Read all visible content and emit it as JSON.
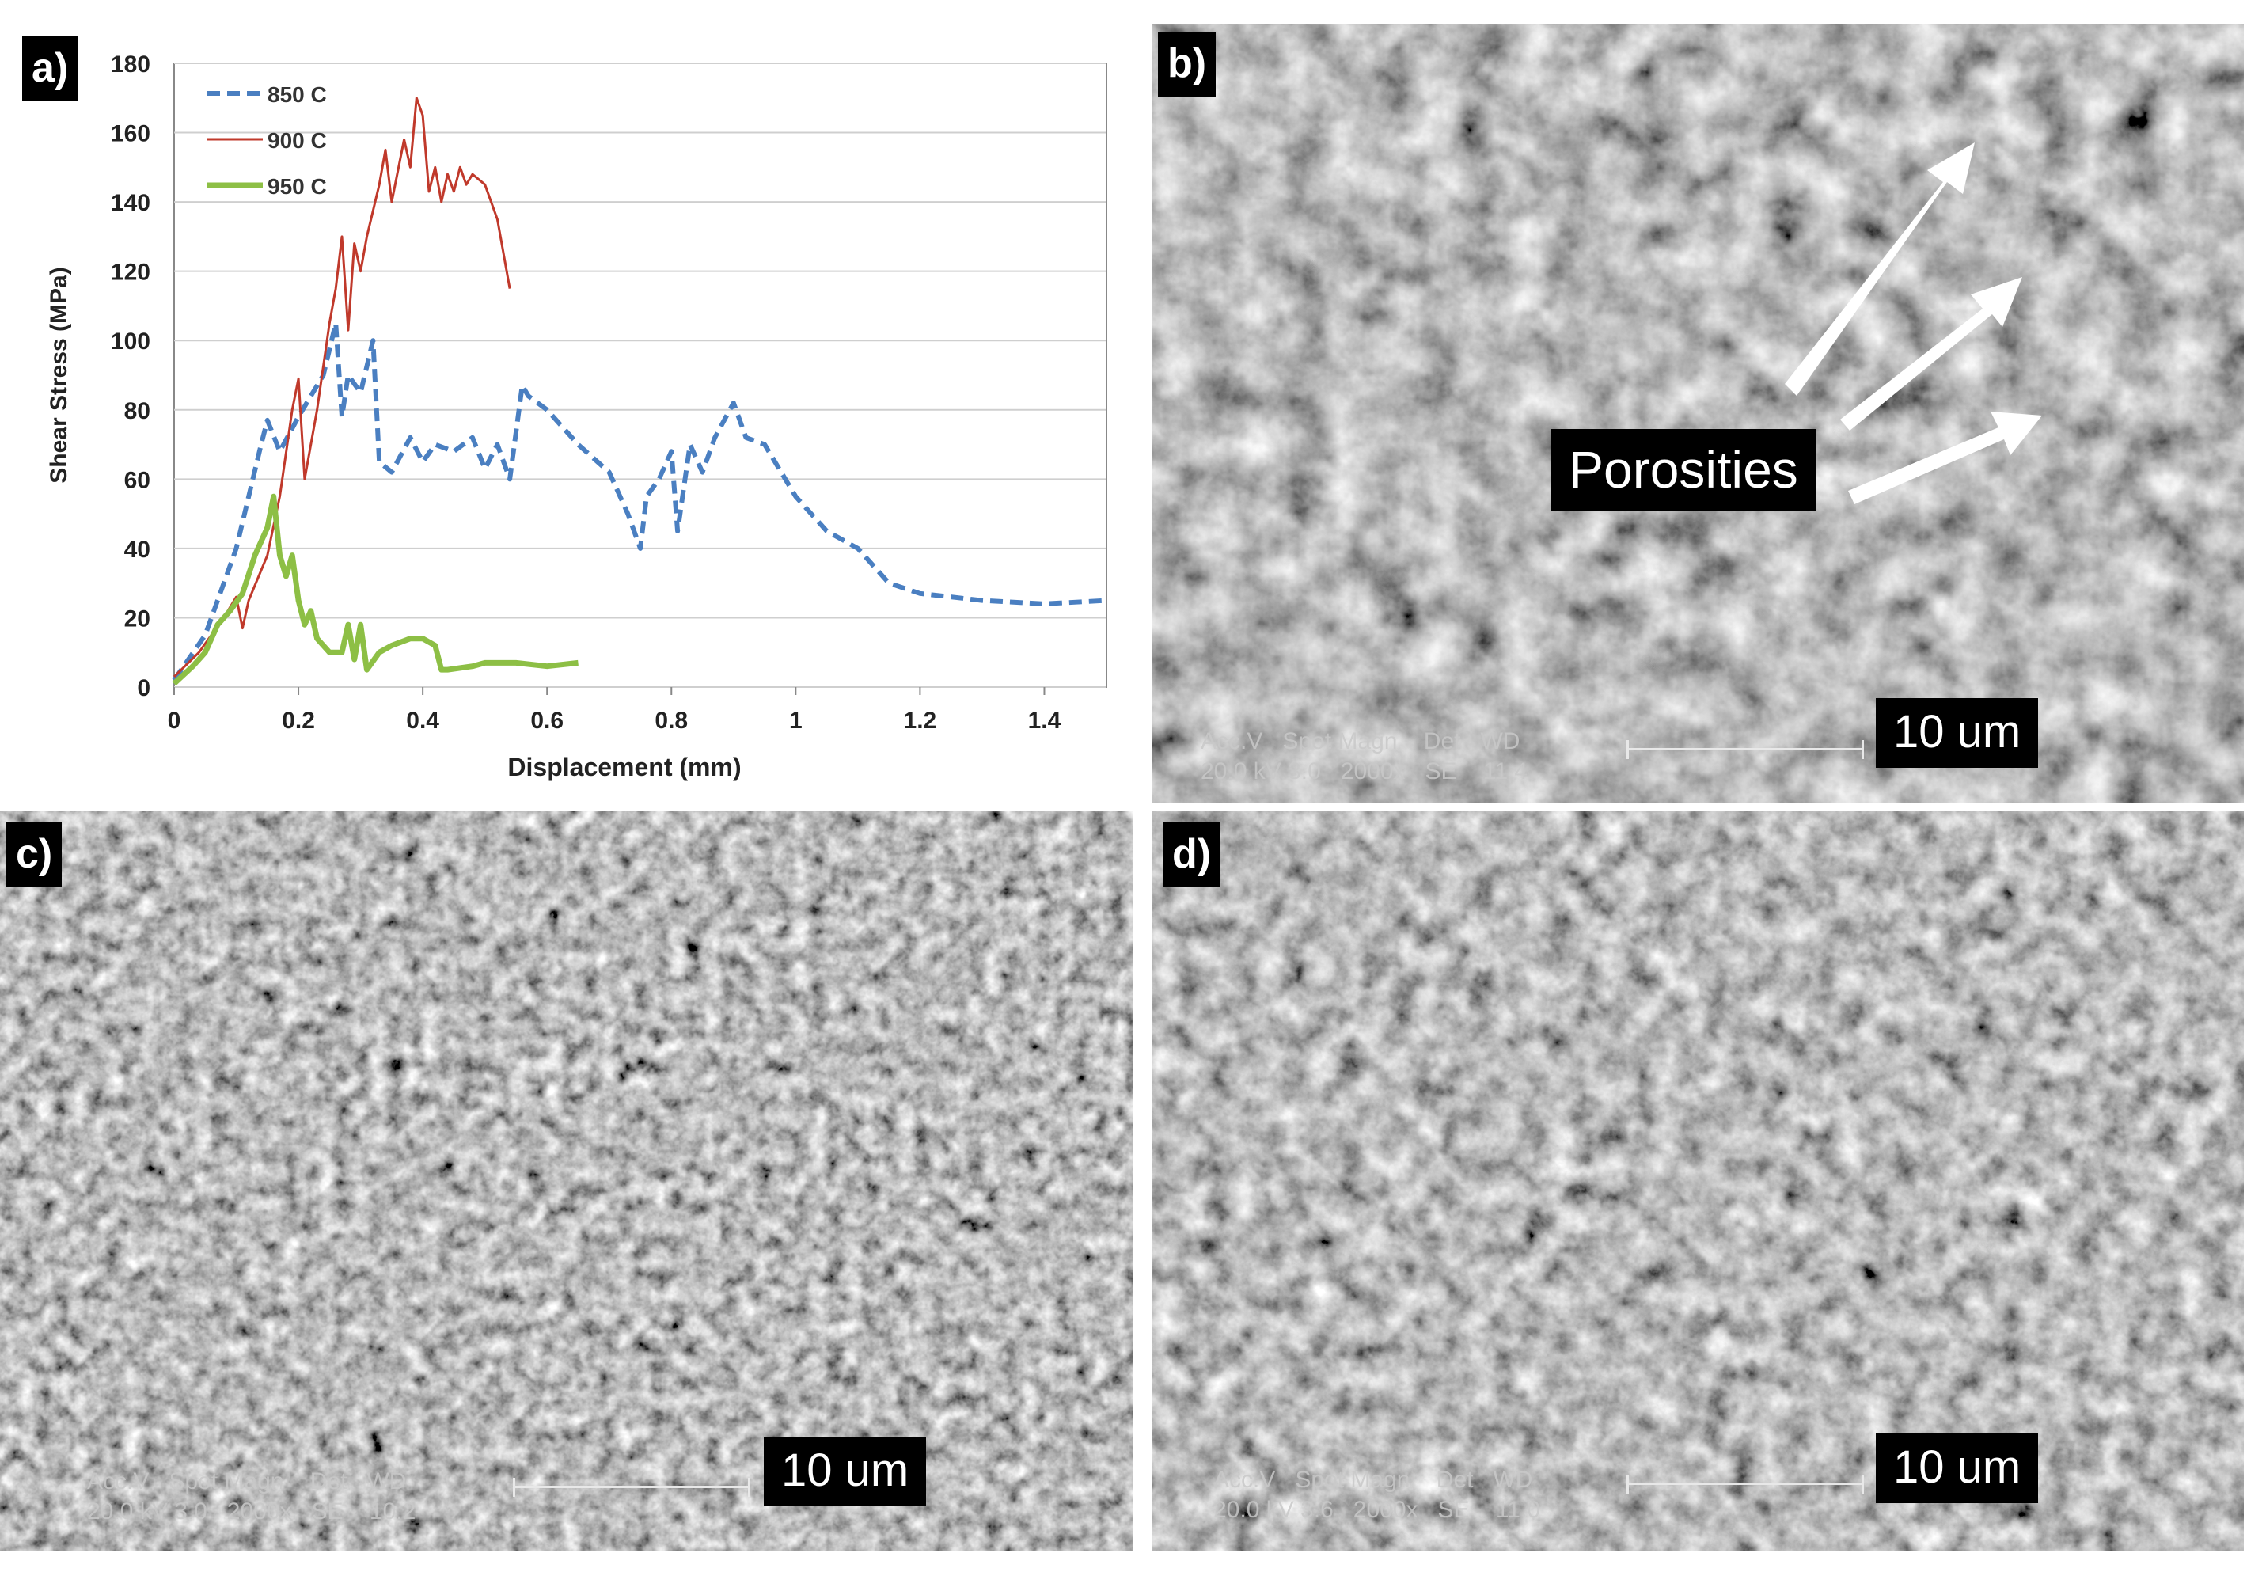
{
  "panels": {
    "a": {
      "label": "a)"
    },
    "b": {
      "label": "b)",
      "annotation": "Porosities",
      "scale": "10 um",
      "meta_line1": "Acc.V   Spot Magn    Det   WD",
      "meta_line2": "20.0 kV 3.0   2000x   SE    11.4"
    },
    "c": {
      "label": "c)",
      "scale": "10 um",
      "meta_line1": "Acc.V   Spot Magn    Det   WD",
      "meta_line2": "20.0 kV 3.0   2000x   SE    10.2"
    },
    "d": {
      "label": "d)",
      "scale": "10 um",
      "meta_line1": "Acc.V   Spot Magn    Det   WD",
      "meta_line2": "20.0 kV 3.6   2000x   SE    11.0"
    }
  },
  "colors": {
    "s850": "#4a7fc1",
    "s900": "#c0392b",
    "s950": "#8dbf45"
  },
  "chart_data": {
    "type": "line",
    "title": "",
    "xlabel": "Displacement (mm)",
    "ylabel": "Shear Stress (MPa)",
    "xlim": [
      0,
      1.5
    ],
    "ylim": [
      0,
      180
    ],
    "xticks": [
      0,
      0.2,
      0.4,
      0.6,
      0.8,
      1,
      1.2,
      1.4
    ],
    "xtick_labels": [
      "0",
      "0.2",
      "0.4",
      "0.6",
      "0.8",
      "1",
      "1.2",
      "1.4"
    ],
    "yticks": [
      0,
      20,
      40,
      60,
      80,
      100,
      120,
      140,
      160,
      180
    ],
    "ytick_labels": [
      "0",
      "20",
      "40",
      "60",
      "80",
      "100",
      "120",
      "140",
      "160",
      "180"
    ],
    "grid": "horizontal",
    "legend": "top-left",
    "series": [
      {
        "name": "850 C",
        "style": "dashed",
        "x": [
          0,
          0.05,
          0.1,
          0.14,
          0.15,
          0.17,
          0.2,
          0.24,
          0.26,
          0.27,
          0.28,
          0.3,
          0.32,
          0.33,
          0.35,
          0.38,
          0.4,
          0.42,
          0.45,
          0.48,
          0.5,
          0.52,
          0.54,
          0.56,
          0.57,
          0.6,
          0.65,
          0.7,
          0.73,
          0.75,
          0.76,
          0.78,
          0.8,
          0.81,
          0.83,
          0.85,
          0.87,
          0.9,
          0.92,
          0.95,
          1.0,
          1.05,
          1.1,
          1.15,
          1.2,
          1.3,
          1.4,
          1.5
        ],
        "y": [
          2,
          15,
          40,
          70,
          77,
          68,
          78,
          90,
          105,
          78,
          90,
          85,
          100,
          65,
          62,
          72,
          65,
          70,
          68,
          72,
          63,
          70,
          60,
          87,
          84,
          80,
          70,
          62,
          50,
          40,
          55,
          60,
          68,
          45,
          70,
          62,
          72,
          82,
          72,
          70,
          55,
          45,
          40,
          30,
          27,
          25,
          24,
          25
        ]
      },
      {
        "name": "900 C",
        "style": "solid",
        "x": [
          0,
          0.04,
          0.08,
          0.1,
          0.11,
          0.12,
          0.15,
          0.17,
          0.19,
          0.2,
          0.21,
          0.23,
          0.25,
          0.26,
          0.27,
          0.28,
          0.29,
          0.3,
          0.31,
          0.33,
          0.34,
          0.35,
          0.37,
          0.38,
          0.39,
          0.4,
          0.41,
          0.42,
          0.43,
          0.44,
          0.45,
          0.46,
          0.47,
          0.48,
          0.5,
          0.52,
          0.54
        ],
        "y": [
          3,
          10,
          20,
          26,
          17,
          25,
          38,
          55,
          80,
          89,
          60,
          80,
          105,
          115,
          130,
          103,
          128,
          120,
          130,
          145,
          155,
          140,
          158,
          150,
          170,
          165,
          143,
          150,
          140,
          148,
          143,
          150,
          145,
          148,
          145,
          135,
          115
        ]
      },
      {
        "name": "950 C",
        "style": "thick",
        "x": [
          0,
          0.03,
          0.05,
          0.07,
          0.09,
          0.11,
          0.13,
          0.15,
          0.16,
          0.17,
          0.18,
          0.19,
          0.2,
          0.21,
          0.22,
          0.23,
          0.25,
          0.27,
          0.28,
          0.29,
          0.3,
          0.31,
          0.33,
          0.35,
          0.38,
          0.4,
          0.42,
          0.43,
          0.44,
          0.48,
          0.5,
          0.55,
          0.6,
          0.65
        ],
        "y": [
          1,
          6,
          10,
          18,
          22,
          27,
          38,
          46,
          55,
          38,
          32,
          38,
          25,
          18,
          22,
          14,
          10,
          10,
          18,
          8,
          18,
          5,
          10,
          12,
          14,
          14,
          12,
          5,
          5,
          6,
          7,
          7,
          6,
          7
        ]
      }
    ]
  }
}
